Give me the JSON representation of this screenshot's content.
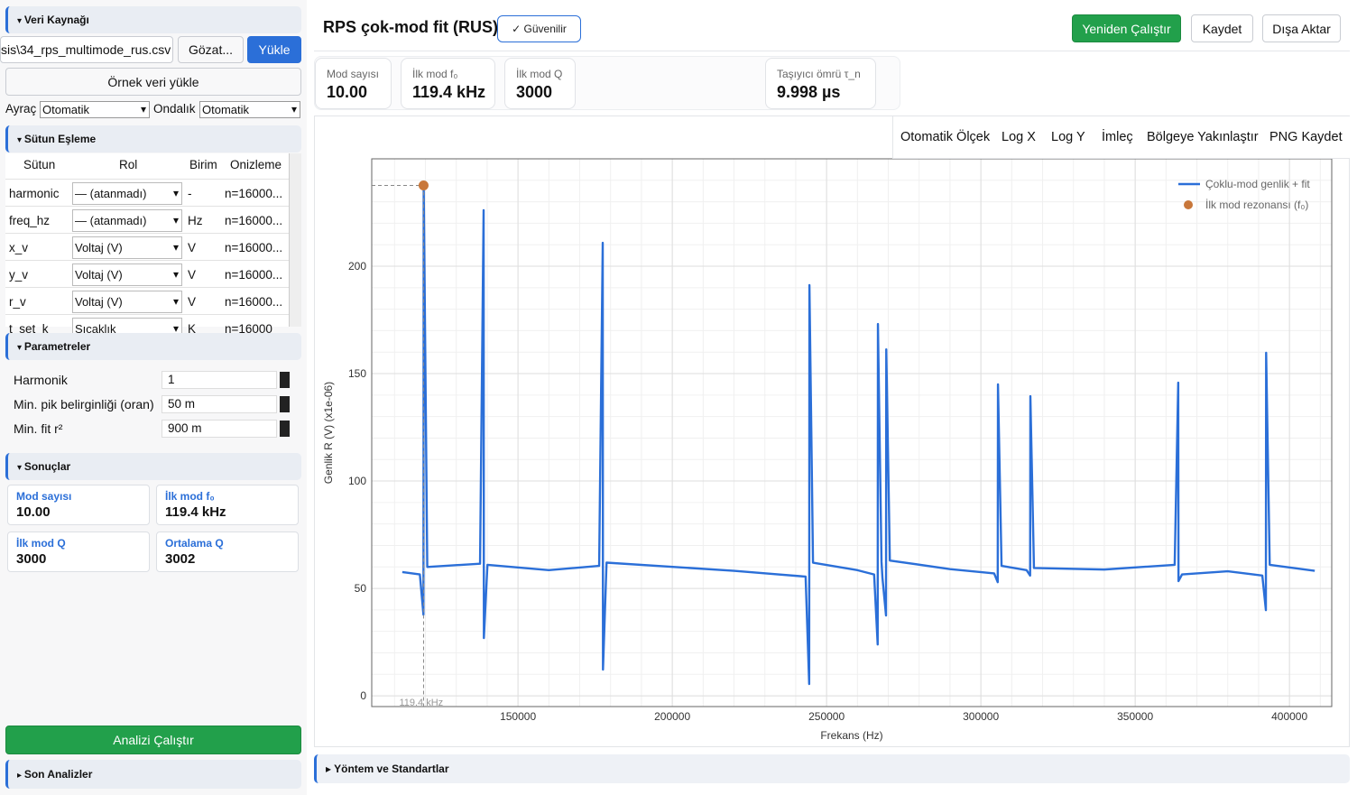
{
  "sidebar": {
    "data_source": {
      "title": "Veri Kaynağı",
      "file": "sis\\34_rps_multimode_rus.csv",
      "browse": "Gözat...",
      "load": "Yükle",
      "sample": "Örnek veri yükle",
      "separator_label": "Ayraç",
      "separator": "Otomatik",
      "decimal_label": "Ondalık",
      "decimal": "Otomatik"
    },
    "column_mapping": {
      "title": "Sütun Eşleme",
      "headers": [
        "Sütun",
        "Rol",
        "Birim",
        "Onizleme"
      ],
      "rows": [
        [
          "harmonic",
          "— (atanmadı)",
          "-",
          "n=16000..."
        ],
        [
          "freq_hz",
          "— (atanmadı)",
          "Hz",
          "n=16000..."
        ],
        [
          "x_v",
          "Voltaj (V)",
          "V",
          "n=16000..."
        ],
        [
          "y_v",
          "Voltaj (V)",
          "V",
          "n=16000..."
        ],
        [
          "r_v",
          "Voltaj (V)",
          "V",
          "n=16000..."
        ],
        [
          "t_set_k",
          "Sıcaklık",
          "K",
          "n=16000"
        ]
      ]
    },
    "parameters": {
      "title": "Parametreler",
      "fields": [
        {
          "label": "Harmonik",
          "value": "1"
        },
        {
          "label": "Min. pik belirginliği (oran)",
          "value": "50 m"
        },
        {
          "label": "Min. fit r²",
          "value": "900 m"
        }
      ]
    },
    "results": {
      "title": "Sonuçlar",
      "cards": [
        {
          "label": "Mod sayısı",
          "value": "10.00"
        },
        {
          "label": "İlk mod f₀",
          "value": "119.4 kHz"
        },
        {
          "label": "İlk mod Q",
          "value": "3000"
        },
        {
          "label": "Ortalama Q",
          "value": "3002"
        }
      ]
    },
    "run": "Analizi Çalıştır",
    "recent": "Son Analizler"
  },
  "header": {
    "title": "RPS çok-mod fit (RUS)",
    "badge": "Güvenilir",
    "buttons": [
      "Yeniden Çalıştır",
      "Kaydet",
      "Dışa Aktar"
    ]
  },
  "metrics": [
    {
      "label": "Mod sayısı",
      "value": "10.00"
    },
    {
      "label": "İlk mod f₀",
      "value": "119.4 kHz"
    },
    {
      "label": "İlk mod Q",
      "value": "3000"
    },
    {
      "label": "Taşıyıcı ömrü τ_n",
      "value": "9.998 µs"
    }
  ],
  "toolbar": [
    "Otomatik Ölçek",
    "Log X",
    "Log Y",
    "İmleç",
    "Bölgeye Yakınlaştır",
    "PNG Kaydet"
  ],
  "chart_data": {
    "type": "line",
    "x_label": "Frekans (Hz)",
    "y_label": "Genlik R (V) (x1e-06)",
    "annotation": "119.4 kHz",
    "xlim": [
      102600,
      413700
    ],
    "ylim": [
      -5,
      250
    ],
    "xticks": [
      150000,
      200000,
      250000,
      300000,
      350000,
      400000
    ],
    "yticks": [
      0,
      50,
      100,
      150,
      200
    ],
    "grid": true,
    "legend": "upper right",
    "series": [
      {
        "name": "Çoklu-mod genlik + fit",
        "color": "#2b6fd8",
        "x": [
          112500,
          118200,
          119360,
          119440,
          120600,
          137700,
          138860,
          138940,
          140100,
          160000,
          176300,
          177460,
          177540,
          178700,
          220000,
          243200,
          244360,
          244440,
          245600,
          260000,
          265400,
          266560,
          266640,
          267800,
          268100,
          269260,
          269340,
          270500,
          290000,
          304300,
          305460,
          305540,
          306700,
          314800,
          315960,
          316040,
          317200,
          340000,
          362800,
          363960,
          364040,
          365200,
          380000,
          391200,
          392360,
          392440,
          393600,
          408200
        ],
        "values": [
          57.6,
          56.5,
          37.8,
          237.4,
          60.0,
          61.5,
          226.1,
          26.9,
          61.0,
          58.5,
          60.5,
          210.9,
          12.2,
          62.0,
          58.2,
          55.5,
          5.5,
          191.2,
          62.0,
          58.5,
          56.5,
          23.9,
          173.1,
          62.5,
          55.0,
          37.4,
          161.3,
          63.0,
          59.0,
          57.0,
          52.9,
          145.0,
          60.5,
          58.5,
          56.0,
          139.5,
          59.5,
          58.8,
          61.0,
          145.8,
          53.4,
          56.5,
          58.0,
          56.0,
          39.9,
          159.7,
          61.0,
          58.2
        ]
      },
      {
        "name": "İlk mod rezonansı (f₀)",
        "color": "#c8773a",
        "type": "scatter",
        "x": [
          119400
        ],
        "values": [
          237.6
        ]
      }
    ]
  },
  "footer_section": "Yöntem ve Standartlar"
}
